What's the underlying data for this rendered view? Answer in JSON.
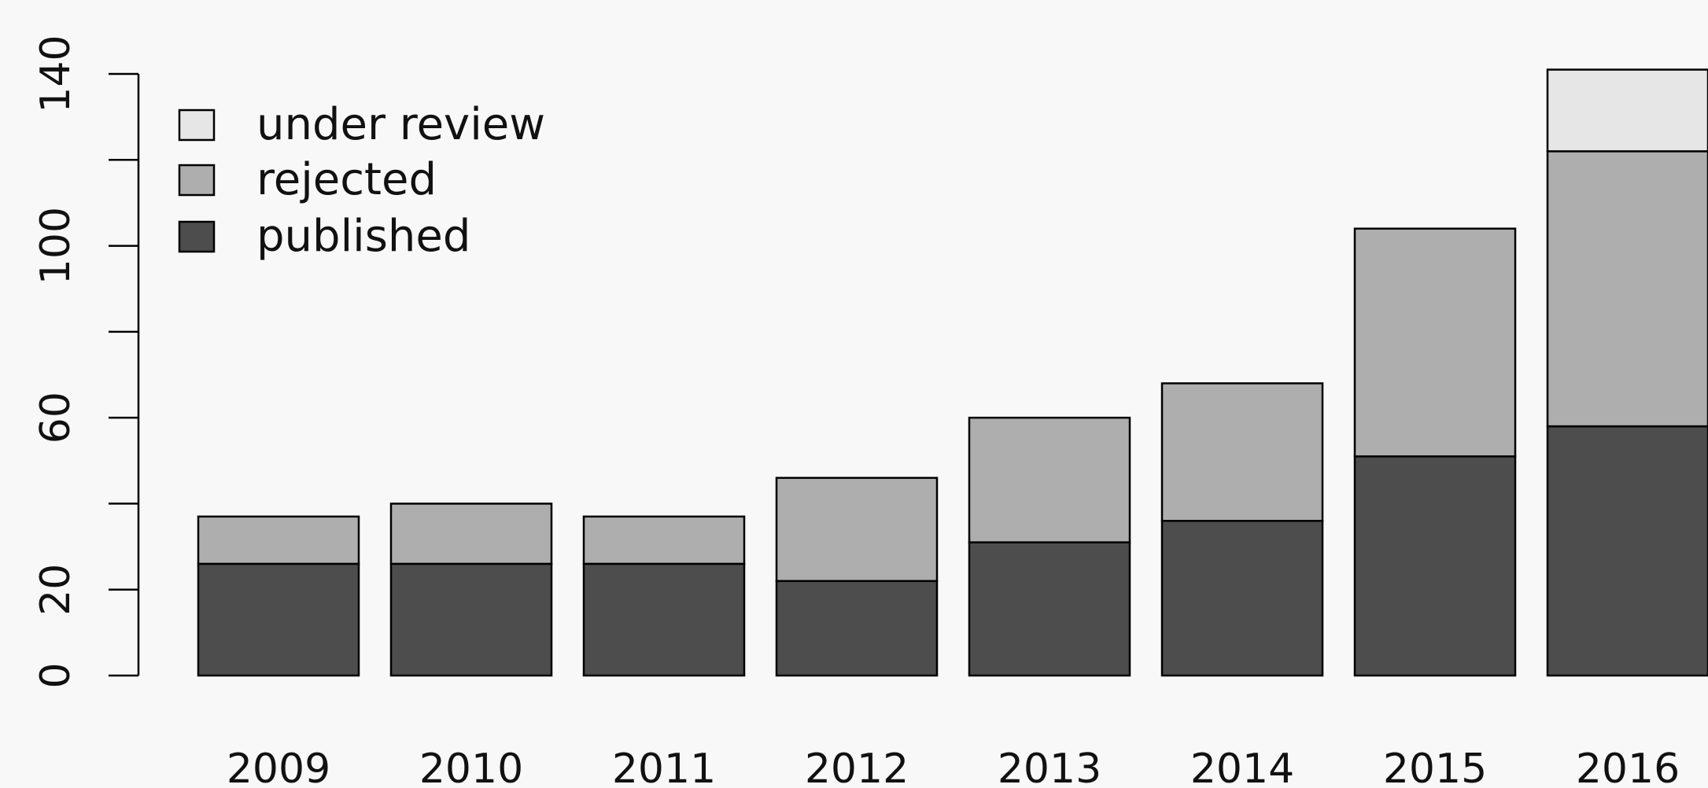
{
  "chart_data": {
    "type": "bar",
    "stacked": true,
    "title": "",
    "xlabel": "",
    "ylabel": "",
    "categories": [
      "2009",
      "2010",
      "2011",
      "2012",
      "2013",
      "2014",
      "2015",
      "2016"
    ],
    "series": [
      {
        "name": "published",
        "color": "#4d4d4d",
        "values": [
          26,
          26,
          26,
          22,
          31,
          36,
          51,
          58
        ]
      },
      {
        "name": "rejected",
        "color": "#aeaeae",
        "values": [
          11,
          14,
          11,
          24,
          29,
          32,
          53,
          64
        ]
      },
      {
        "name": "under review",
        "color": "#e6e6e6",
        "values": [
          0,
          0,
          0,
          0,
          0,
          0,
          0,
          19
        ]
      }
    ],
    "ylim": [
      0,
      140
    ],
    "y_ticks": [
      0,
      20,
      40,
      60,
      80,
      100,
      120,
      140
    ],
    "y_tick_labels": [
      "0",
      "20",
      "",
      "60",
      "",
      "100",
      "",
      "140"
    ],
    "grid": false,
    "legend": {
      "position": "top-left",
      "entries": [
        "under review",
        "rejected",
        "published"
      ]
    }
  }
}
